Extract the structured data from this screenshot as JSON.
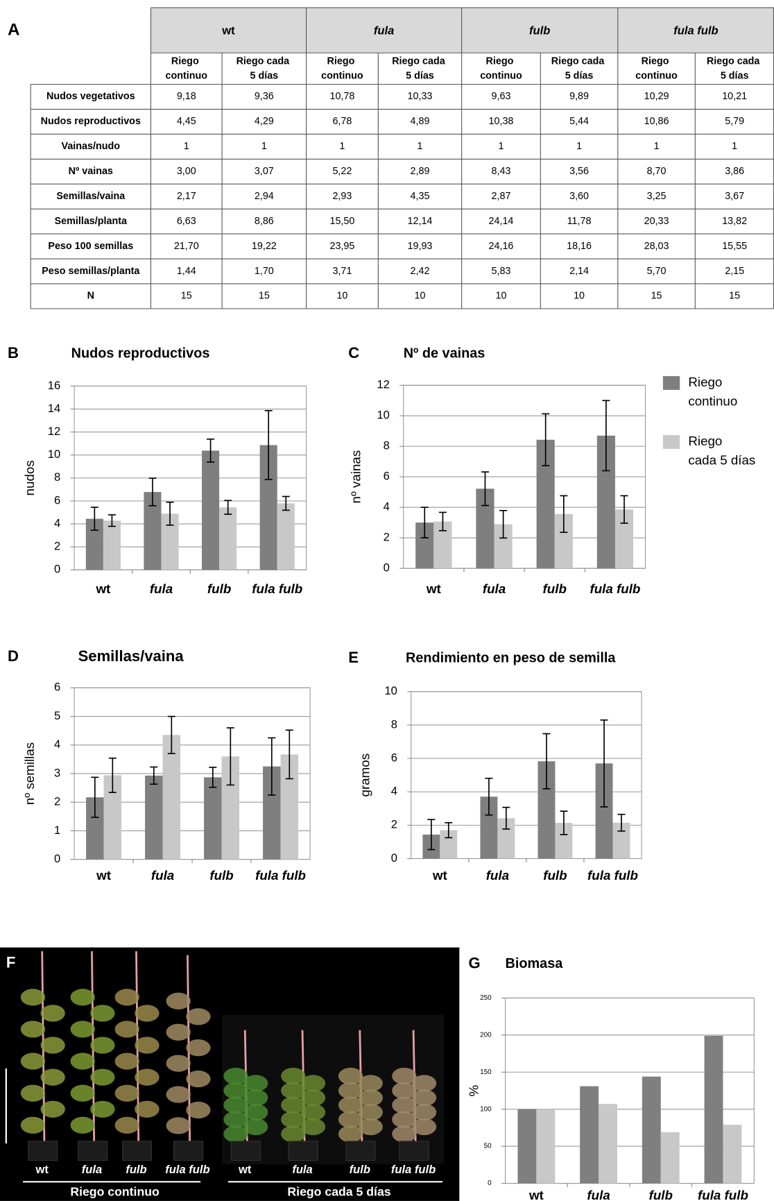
{
  "table": {
    "panel": "A",
    "groups": [
      "wt",
      "fula",
      "fulb",
      "fula fulb"
    ],
    "subheaders": [
      "Riego continuo",
      "Riego cada 5 días"
    ],
    "rows": [
      [
        "Nudos vegetativos",
        "9,18",
        "9,36",
        "10,78",
        "10,33",
        "9,63",
        "9,89",
        "10,29",
        "10,21"
      ],
      [
        "Nudos reproductivos",
        "4,45",
        "4,29",
        "6,78",
        "4,89",
        "10,38",
        "5,44",
        "10,86",
        "5,79"
      ],
      [
        "Vainas/nudo",
        "1",
        "1",
        "1",
        "1",
        "1",
        "1",
        "1",
        "1"
      ],
      [
        "Nº vainas",
        "3,00",
        "3,07",
        "5,22",
        "2,89",
        "8,43",
        "3,56",
        "8,70",
        "3,86"
      ],
      [
        "Semillas/vaina",
        "2,17",
        "2,94",
        "2,93",
        "4,35",
        "2,87",
        "3,60",
        "3,25",
        "3,67"
      ],
      [
        "Semillas/planta",
        "6,63",
        "8,86",
        "15,50",
        "12,14",
        "24,14",
        "11,78",
        "20,33",
        "13,82"
      ],
      [
        "Peso 100 semillas",
        "21,70",
        "19,22",
        "23,95",
        "19,93",
        "24,16",
        "18,16",
        "28,03",
        "15,55"
      ],
      [
        "Peso semillas/planta",
        "1,44",
        "1,70",
        "3,71",
        "2,42",
        "5,83",
        "2,14",
        "5,70",
        "2,15"
      ],
      [
        "N",
        "15",
        "15",
        "10",
        "10",
        "10",
        "10",
        "15",
        "15"
      ]
    ]
  },
  "chart_data": [
    {
      "type": "bar",
      "panel": "B",
      "title": "Nudos reproductivos",
      "ylabel": "nudos",
      "categories": [
        "wt",
        "fula",
        "fulb",
        "fula fulb"
      ],
      "series": [
        {
          "color": "#7f7f7f",
          "values": [
            4.45,
            6.78,
            10.38,
            10.86
          ],
          "errors": [
            1.0,
            1.2,
            1.0,
            3.0
          ]
        },
        {
          "color": "#c8c8c8",
          "values": [
            4.29,
            4.89,
            5.44,
            5.79
          ],
          "errors": [
            0.5,
            1.0,
            0.6,
            0.6
          ]
        }
      ],
      "ylim": [
        0,
        16
      ],
      "yticks": [
        0,
        2,
        4,
        6,
        8,
        10,
        12,
        14,
        16
      ],
      "grid": true
    },
    {
      "type": "bar",
      "panel": "C",
      "title": "Nº de vainas",
      "ylabel": "nº vainas",
      "categories": [
        "wt",
        "fula",
        "fulb",
        "fula fulb"
      ],
      "series": [
        {
          "name": "Riego continuo",
          "color": "#7f7f7f",
          "values": [
            3.0,
            5.22,
            8.43,
            8.7
          ],
          "errors": [
            1.0,
            1.1,
            1.7,
            2.3
          ]
        },
        {
          "name": "Riego cada 5 días",
          "color": "#c8c8c8",
          "values": [
            3.07,
            2.89,
            3.56,
            3.86
          ],
          "errors": [
            0.6,
            0.9,
            1.2,
            0.9
          ]
        }
      ],
      "ylim": [
        0,
        12
      ],
      "yticks": [
        0,
        2,
        4,
        6,
        8,
        10,
        12
      ],
      "grid": true,
      "legend": "right"
    },
    {
      "type": "bar",
      "panel": "D",
      "title": "Semillas/vaina",
      "ylabel": "nº semillas",
      "categories": [
        "wt",
        "fula",
        "fulb",
        "fula fulb"
      ],
      "series": [
        {
          "color": "#7f7f7f",
          "values": [
            2.17,
            2.93,
            2.87,
            3.25
          ],
          "errors": [
            0.7,
            0.3,
            0.35,
            1.0
          ]
        },
        {
          "color": "#c8c8c8",
          "values": [
            2.94,
            4.35,
            3.6,
            3.67
          ],
          "errors": [
            0.6,
            0.65,
            1.0,
            0.85
          ]
        }
      ],
      "ylim": [
        0,
        6
      ],
      "yticks": [
        0,
        1,
        2,
        3,
        4,
        5,
        6
      ],
      "grid": true
    },
    {
      "type": "bar",
      "panel": "E",
      "title": "Rendimiento en peso de semilla",
      "ylabel": "gramos",
      "categories": [
        "wt",
        "fula",
        "fulb",
        "fula fulb"
      ],
      "series": [
        {
          "color": "#7f7f7f",
          "values": [
            1.44,
            3.71,
            5.83,
            5.7
          ],
          "errors": [
            0.9,
            1.1,
            1.65,
            2.6
          ]
        },
        {
          "color": "#c8c8c8",
          "values": [
            1.7,
            2.42,
            2.14,
            2.15
          ],
          "errors": [
            0.45,
            0.65,
            0.7,
            0.5
          ]
        }
      ],
      "ylim": [
        0,
        10
      ],
      "yticks": [
        0,
        2,
        4,
        6,
        8,
        10
      ],
      "grid": true
    },
    {
      "type": "bar",
      "panel": "G",
      "title": "Biomasa",
      "ylabel": "%",
      "categories": [
        "wt",
        "fula",
        "fulb",
        "fula fulb"
      ],
      "series": [
        {
          "color": "#7f7f7f",
          "values": [
            100,
            131,
            144,
            199
          ]
        },
        {
          "color": "#c8c8c8",
          "values": [
            100,
            107,
            69,
            79
          ]
        }
      ],
      "ylim": [
        0,
        250
      ],
      "yticks": [
        0,
        50,
        100,
        150,
        200,
        250
      ],
      "grid": true
    }
  ],
  "photo": {
    "panel": "F",
    "labels": [
      "wt",
      "fula",
      "fulb",
      "fula fulb",
      "wt",
      "fula",
      "fulb",
      "fula fulb"
    ],
    "groups": [
      "Riego continuo",
      "Riego cada 5 días"
    ]
  }
}
